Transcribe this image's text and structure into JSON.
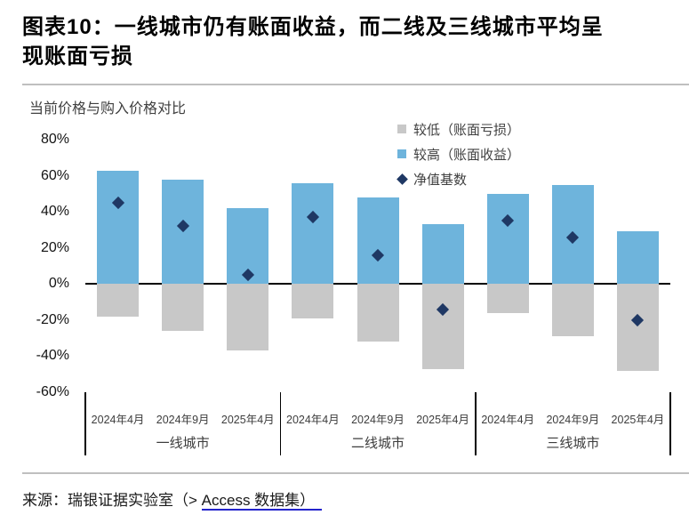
{
  "header": {
    "title": "图表10：一线城市仍有账面收益，而二线及三线城市平均呈现账面亏损"
  },
  "chart": {
    "subtitle": "当前价格与购入价格对比",
    "legend": [
      {
        "label": "较低（账面亏损）",
        "marker": "square",
        "color": "#c8c8c8"
      },
      {
        "label": "较高（账面收益）",
        "marker": "square",
        "color": "#6eb4dc"
      },
      {
        "label": "净值基数",
        "marker": "diamond",
        "color": "#1f3864"
      }
    ]
  },
  "footer": {
    "source_prefix": "来源：瑞银证据实验室（> ",
    "source_link": "Access 数据集）"
  },
  "chart_data": {
    "type": "bar",
    "title": "图表10：一线城市仍有账面收益，而二线及三线城市平均呈现账面亏损",
    "ylabel": "当前价格与购入价格对比",
    "unit": "%",
    "groups": [
      {
        "label": "一线城市",
        "categories": [
          "2024年4月",
          "2024年9月",
          "2025年4月"
        ]
      },
      {
        "label": "二线城市",
        "categories": [
          "2024年4月",
          "2024年9月",
          "2025年4月"
        ]
      },
      {
        "label": "三线城市",
        "categories": [
          "2024年4月",
          "2024年9月",
          "2025年4月"
        ]
      }
    ],
    "series": [
      {
        "name": "较高（账面收益）",
        "type": "bar",
        "color": "#6eb4dc",
        "values": [
          63,
          58,
          42,
          56,
          48,
          33,
          50,
          55,
          29
        ]
      },
      {
        "name": "较低（账面亏损）",
        "type": "bar",
        "color": "#c8c8c8",
        "values": [
          -18,
          -26,
          -37,
          -19,
          -32,
          -47,
          -16,
          -29,
          -48
        ]
      },
      {
        "name": "净值基数",
        "type": "scatter",
        "marker": "diamond",
        "color": "#1f3864",
        "values": [
          45,
          32,
          5,
          37,
          16,
          -14,
          35,
          26,
          -20
        ]
      }
    ],
    "yticks": [
      80,
      60,
      40,
      20,
      0,
      -20,
      -40,
      -60
    ],
    "ylim": [
      -60,
      80
    ],
    "grid": false,
    "legend_position": "top-right",
    "axis_color": "#000000"
  }
}
